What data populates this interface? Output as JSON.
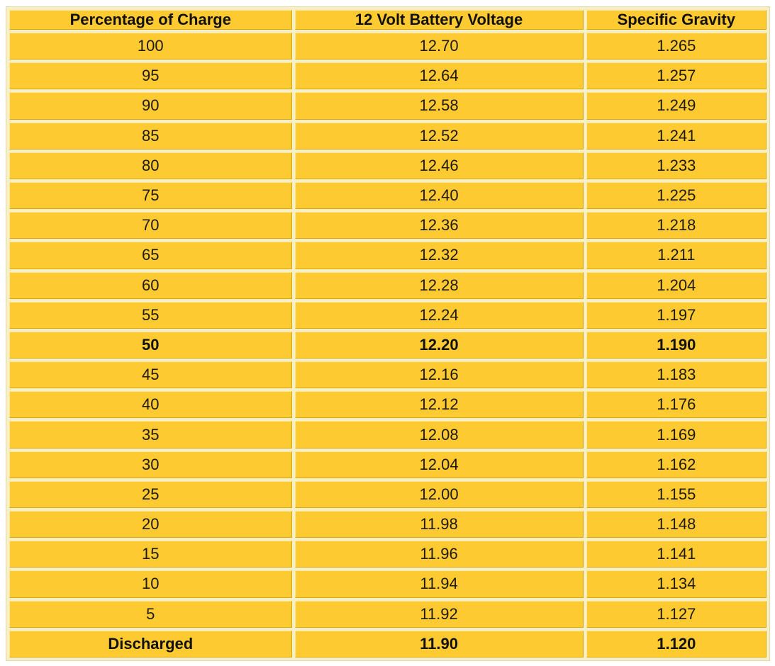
{
  "table": {
    "headers": [
      "Percentage of Charge",
      "12 Volt Battery Voltage",
      "Specific Gravity"
    ],
    "rows": [
      {
        "charge": "100",
        "voltage": "12.70",
        "gravity": "1.265",
        "bold": false
      },
      {
        "charge": "95",
        "voltage": "12.64",
        "gravity": "1.257",
        "bold": false
      },
      {
        "charge": "90",
        "voltage": "12.58",
        "gravity": "1.249",
        "bold": false
      },
      {
        "charge": "85",
        "voltage": "12.52",
        "gravity": "1.241",
        "bold": false
      },
      {
        "charge": "80",
        "voltage": "12.46",
        "gravity": "1.233",
        "bold": false
      },
      {
        "charge": "75",
        "voltage": "12.40",
        "gravity": "1.225",
        "bold": false
      },
      {
        "charge": "70",
        "voltage": "12.36",
        "gravity": "1.218",
        "bold": false
      },
      {
        "charge": "65",
        "voltage": "12.32",
        "gravity": "1.211",
        "bold": false
      },
      {
        "charge": "60",
        "voltage": "12.28",
        "gravity": "1.204",
        "bold": false
      },
      {
        "charge": "55",
        "voltage": "12.24",
        "gravity": "1.197",
        "bold": false
      },
      {
        "charge": "50",
        "voltage": "12.20",
        "gravity": "1.190",
        "bold": true
      },
      {
        "charge": "45",
        "voltage": "12.16",
        "gravity": "1.183",
        "bold": false
      },
      {
        "charge": "40",
        "voltage": "12.12",
        "gravity": "1.176",
        "bold": false
      },
      {
        "charge": "35",
        "voltage": "12.08",
        "gravity": "1.169",
        "bold": false
      },
      {
        "charge": "30",
        "voltage": "12.04",
        "gravity": "1.162",
        "bold": false
      },
      {
        "charge": "25",
        "voltage": "12.00",
        "gravity": "1.155",
        "bold": false
      },
      {
        "charge": "20",
        "voltage": "11.98",
        "gravity": "1.148",
        "bold": false
      },
      {
        "charge": "15",
        "voltage": "11.96",
        "gravity": "1.141",
        "bold": false
      },
      {
        "charge": "10",
        "voltage": "11.94",
        "gravity": "1.134",
        "bold": false
      },
      {
        "charge": "5",
        "voltage": "11.92",
        "gravity": "1.127",
        "bold": false
      },
      {
        "charge": "Discharged",
        "voltage": "11.90",
        "gravity": "1.120",
        "bold": true
      }
    ]
  },
  "colors": {
    "cell_fill": "#fdca31",
    "frame": "#f7efc6",
    "text": "#1f1a0f"
  }
}
